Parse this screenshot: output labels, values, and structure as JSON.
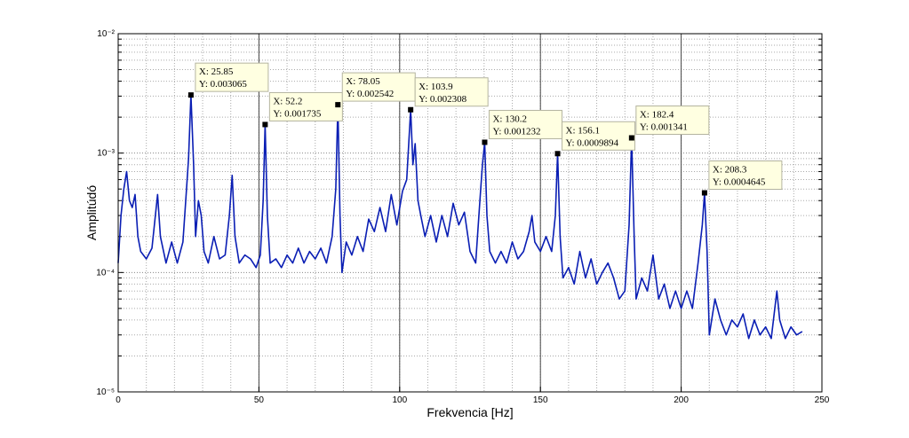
{
  "chart_data": {
    "type": "line",
    "x_label": "Frekvencia [Hz]",
    "y_label": "Amplitúdó",
    "log_y": true,
    "grid": true,
    "minor_grid": true,
    "xlim": [
      0,
      250
    ],
    "ylim": [
      1e-05,
      0.01
    ],
    "xticks": [
      0,
      50,
      100,
      150,
      200,
      250
    ],
    "yticks": [
      {
        "value": 0.01,
        "label": "10⁻²"
      },
      {
        "value": 0.001,
        "label": "10⁻³"
      },
      {
        "value": 0.0001,
        "label": "10⁻⁴"
      },
      {
        "value": 1e-05,
        "label": "10⁻⁵"
      }
    ],
    "x": [
      0,
      1,
      2,
      3,
      4,
      5,
      6,
      7,
      8,
      10,
      12,
      14,
      15,
      17,
      19,
      21,
      23,
      24,
      25,
      25.85,
      26.8,
      27.5,
      28.5,
      29.5,
      30.5,
      32,
      34,
      36,
      38,
      39.5,
      40.5,
      41.5,
      43,
      45,
      47,
      49,
      50.5,
      51.5,
      52.2,
      53,
      54,
      56,
      58,
      60,
      62,
      64,
      66,
      68,
      70,
      72,
      74,
      76,
      77.3,
      78.05,
      78.8,
      79.5,
      81,
      83,
      85,
      87,
      89,
      91,
      93,
      95,
      97,
      99,
      101,
      102.5,
      103.9,
      104.7,
      105.5,
      106.5,
      107.5,
      109,
      111,
      113,
      115,
      117,
      119,
      121,
      123,
      125,
      127,
      128.5,
      129.4,
      130.2,
      131,
      132,
      134,
      136,
      138,
      140,
      142,
      144,
      146,
      147,
      148,
      150,
      152,
      154,
      155.3,
      156.1,
      157,
      158,
      160,
      162,
      164,
      166,
      168,
      170,
      172,
      174,
      176,
      178,
      180,
      181.5,
      182.4,
      183.3,
      184,
      186,
      188,
      190,
      192,
      194,
      196,
      198,
      200,
      202,
      204,
      206,
      207.5,
      208.3,
      209.2,
      210,
      212,
      214,
      216,
      218,
      220,
      222,
      224,
      226,
      228,
      230,
      232,
      234,
      235,
      237,
      239,
      241,
      243
    ],
    "series": [
      {
        "color": "#0a1eb4",
        "values": [
          0.00012,
          0.0003,
          0.0005,
          0.0007,
          0.0004,
          0.00035,
          0.00045,
          0.0002,
          0.00015,
          0.00013,
          0.00016,
          0.00045,
          0.0002,
          0.00012,
          0.00018,
          0.00012,
          0.00018,
          0.0004,
          0.0009,
          0.003065,
          0.0008,
          0.0002,
          0.0004,
          0.0003,
          0.00015,
          0.00012,
          0.0002,
          0.00013,
          0.00014,
          0.0003,
          0.00065,
          0.0002,
          0.00012,
          0.00014,
          0.00013,
          0.00011,
          0.00014,
          0.0004,
          0.001735,
          0.0003,
          0.00012,
          0.00013,
          0.00011,
          0.00014,
          0.00012,
          0.00016,
          0.00012,
          0.00015,
          0.00013,
          0.00016,
          0.00012,
          0.0002,
          0.0005,
          0.002542,
          0.0003,
          0.0001,
          0.00018,
          0.00014,
          0.0002,
          0.00015,
          0.00028,
          0.00022,
          0.00035,
          0.00022,
          0.00045,
          0.00025,
          0.00048,
          0.0006,
          0.002308,
          0.0008,
          0.0012,
          0.0004,
          0.0003,
          0.0002,
          0.0003,
          0.00018,
          0.0003,
          0.0002,
          0.00038,
          0.00025,
          0.00032,
          0.00015,
          0.00012,
          0.0004,
          0.0008,
          0.001232,
          0.0003,
          0.00015,
          0.00012,
          0.00015,
          0.00012,
          0.00018,
          0.00013,
          0.00015,
          0.00022,
          0.0003,
          0.00018,
          0.00015,
          0.0002,
          0.00015,
          0.0003,
          0.0009894,
          0.0002,
          9e-05,
          0.00011,
          8e-05,
          0.00015,
          9e-05,
          0.00013,
          8e-05,
          0.0001,
          0.00012,
          9e-05,
          6e-05,
          7e-05,
          0.00025,
          0.001341,
          0.0002,
          6e-05,
          9e-05,
          7e-05,
          0.00014,
          6e-05,
          8e-05,
          5e-05,
          7e-05,
          5e-05,
          7e-05,
          5e-05,
          0.00012,
          0.00025,
          0.0004645,
          0.00015,
          3e-05,
          6e-05,
          4e-05,
          3e-05,
          4e-05,
          3.5e-05,
          4.5e-05,
          2.8e-05,
          4e-05,
          3e-05,
          3.5e-05,
          2.8e-05,
          7e-05,
          4e-05,
          2.8e-05,
          3.5e-05,
          3e-05,
          3.2e-05
        ]
      }
    ],
    "datatips": [
      {
        "x": 25.85,
        "y": 0.003065,
        "label_x": "X: 25.85",
        "label_y": "Y: 0.003065"
      },
      {
        "x": 52.2,
        "y": 0.001735,
        "label_x": "X: 52.2",
        "label_y": "Y: 0.001735"
      },
      {
        "x": 78.05,
        "y": 0.002542,
        "label_x": "X: 78.05",
        "label_y": "Y: 0.002542"
      },
      {
        "x": 103.9,
        "y": 0.002308,
        "label_x": "X: 103.9",
        "label_y": "Y: 0.002308"
      },
      {
        "x": 130.2,
        "y": 0.001232,
        "label_x": "X: 130.2",
        "label_y": "Y: 0.001232"
      },
      {
        "x": 156.1,
        "y": 0.0009894,
        "label_x": "X: 156.1",
        "label_y": "Y: 0.0009894"
      },
      {
        "x": 182.4,
        "y": 0.001341,
        "label_x": "X: 182.4",
        "label_y": "Y: 0.001341"
      },
      {
        "x": 208.3,
        "y": 0.0004645,
        "label_x": "X: 208.3",
        "label_y": "Y: 0.0004645"
      }
    ]
  }
}
